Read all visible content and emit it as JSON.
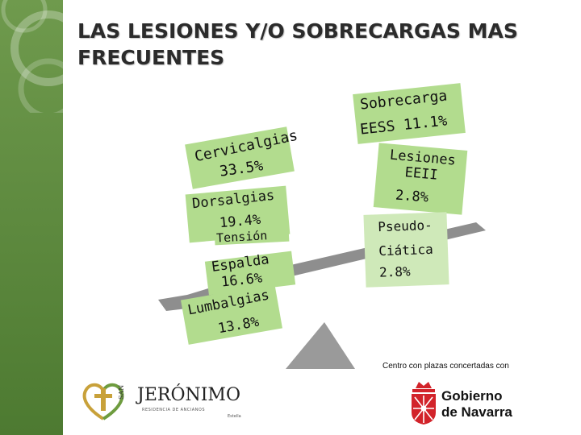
{
  "title": "LAS LESIONES Y/O SOBRECARGAS MAS FRECUENTES",
  "left_items": [
    {
      "label": "Cervicalgias",
      "value": "33.5%"
    },
    {
      "label": "Dorsalgias",
      "value": "19.4%"
    },
    {
      "label": "Tensión",
      "value": ""
    },
    {
      "label": "Espalda",
      "value": "16.6%"
    },
    {
      "label": "Lumbalgias",
      "value": "13.8%"
    }
  ],
  "right_items": [
    {
      "label": "Sobrecarga",
      "value": "EESS 11.1%"
    },
    {
      "label": "Lesiones EEII",
      "value": "2.8%"
    },
    {
      "label": "Pseudo-Ciática",
      "value": "2.8%"
    }
  ],
  "note": "Centro con plazas concertadas con",
  "logo_left": {
    "word": "JERÓNIMO",
    "prefix": "SAN",
    "sub": "RESIDENCIA DE ANCIANOS",
    "city": "Estella"
  },
  "logo_right": {
    "line1": "Gobierno",
    "line2": "de Navarra"
  },
  "colors": {
    "green_dark": "#4d7a31",
    "green_card": "#b2dc8e",
    "green_light": "#cfe9b9",
    "balance_gray": "#8e8e8e",
    "navarra_red": "#d2232a"
  }
}
